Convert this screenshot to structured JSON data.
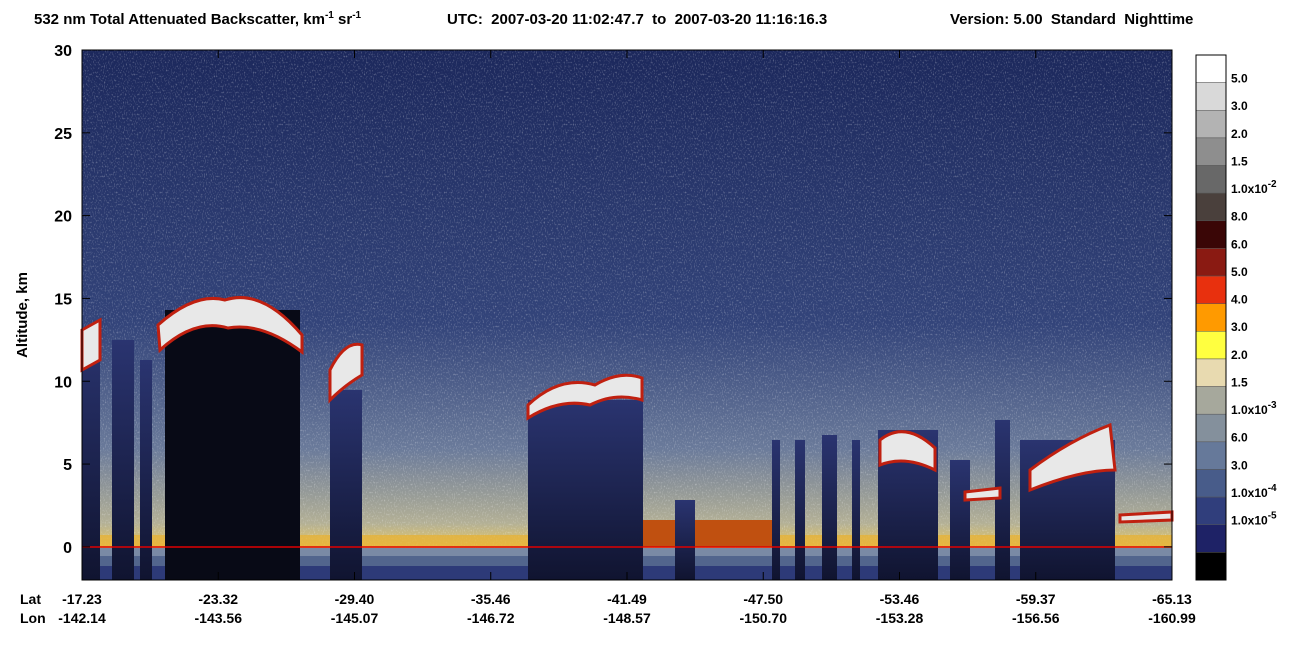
{
  "chart_data": {
    "type": "curtain",
    "title": {
      "text": "532 nm Total Attenuated Backscatter, km",
      "sup1": "-1",
      "mid": " sr",
      "sup2": "-1"
    },
    "utc": "UTC:  2007-03-20 11:02:47.7  to  2007-03-20 11:16:16.3",
    "version": "Version: 5.00  Standard  Nighttime",
    "y_label": "Altitude, km",
    "ylim": [
      -2,
      30
    ],
    "yticks": [
      0,
      5,
      10,
      15,
      20,
      25,
      30
    ],
    "lat_label": "Lat",
    "lon_label": "Lon",
    "categories": [
      "-17.23",
      "-23.32",
      "-29.40",
      "-35.46",
      "-41.49",
      "-47.50",
      "-53.46",
      "-59.37",
      "-65.13"
    ],
    "lon": [
      "-142.14",
      "-143.56",
      "-145.07",
      "-146.72",
      "-148.57",
      "-150.70",
      "-153.28",
      "-156.56",
      "-160.99"
    ],
    "colorbar": {
      "colors": [
        "#ffffff",
        "#d9d9d9",
        "#b3b3b3",
        "#8e8e8e",
        "#686868",
        "#4a403c",
        "#3a0606",
        "#8a1a12",
        "#e8300e",
        "#ff9a00",
        "#ffff40",
        "#e8dab0",
        "#a6a89c",
        "#84909c",
        "#66799a",
        "#485c8a",
        "#303e7c",
        "#1e2266",
        "#000000"
      ],
      "labels": [
        "5.0",
        "3.0",
        "2.0",
        "1.5",
        {
          "text": "1.0x10",
          "sup": "-2"
        },
        "8.0",
        "6.0",
        "5.0",
        "4.0",
        "3.0",
        "2.0",
        "1.5",
        {
          "text": "1.0x10",
          "sup": "-3"
        },
        "6.0",
        "3.0",
        {
          "text": "1.0x10",
          "sup": "-4"
        },
        {
          "text": "1.0x10",
          "sup": "-5"
        }
      ]
    }
  }
}
